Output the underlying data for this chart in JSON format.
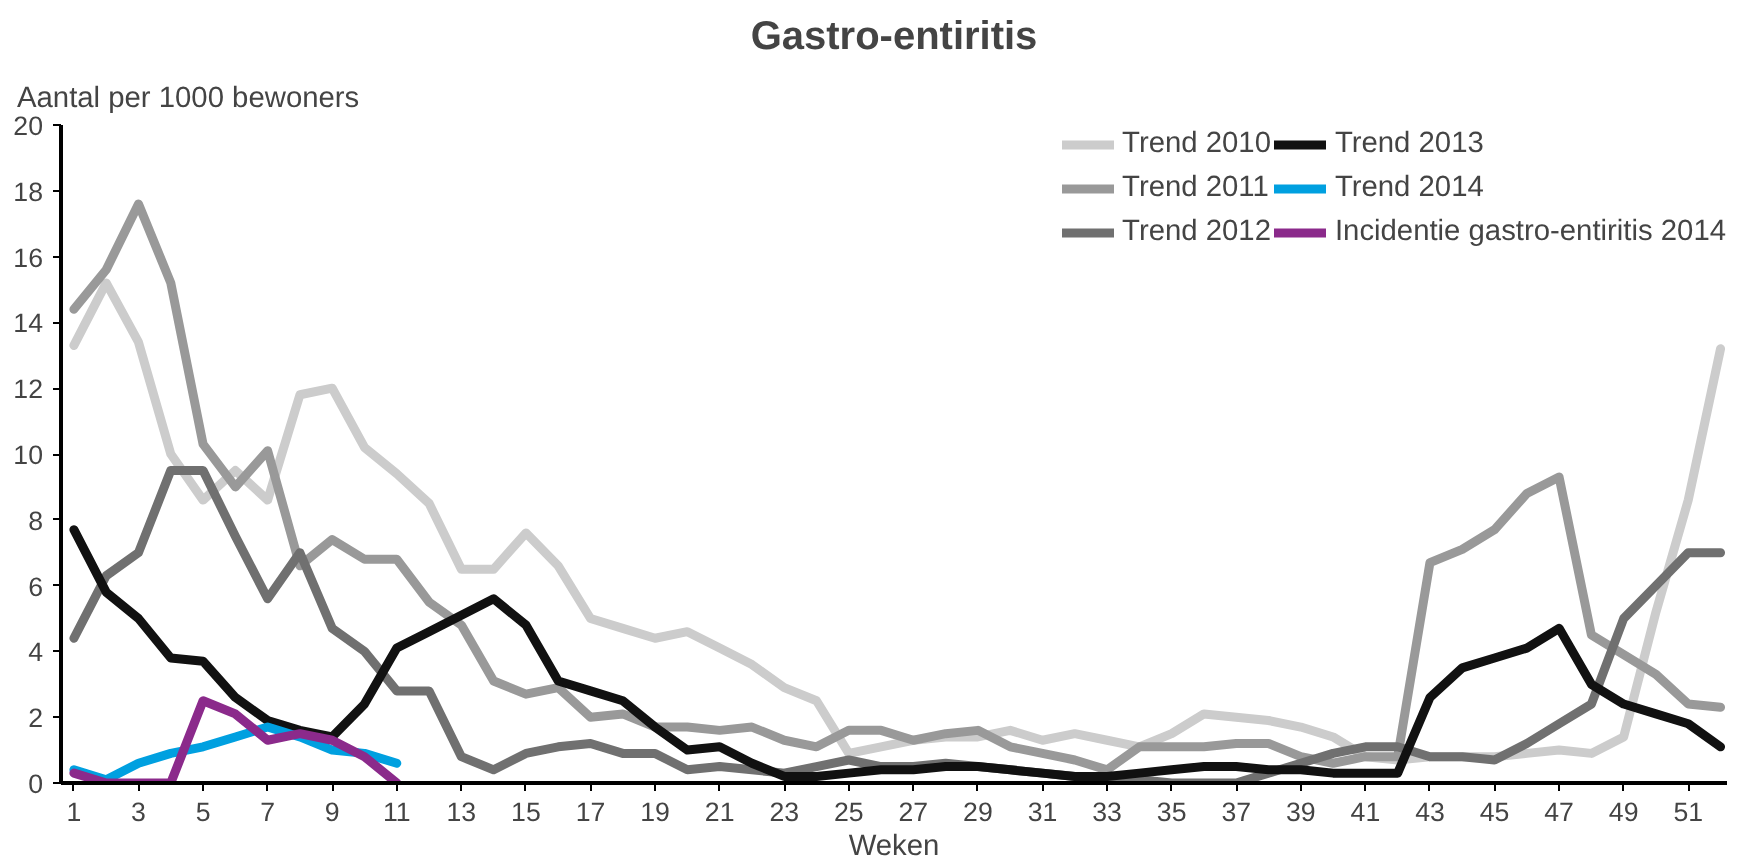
{
  "chart_data": {
    "type": "line",
    "title": "Gastro-entiritis",
    "xlabel": "Weken",
    "ylabel": "Aantal per 1000 bewoners",
    "x": [
      1,
      2,
      3,
      4,
      5,
      6,
      7,
      8,
      9,
      10,
      11,
      12,
      13,
      14,
      15,
      16,
      17,
      18,
      19,
      20,
      21,
      22,
      23,
      24,
      25,
      26,
      27,
      28,
      29,
      30,
      31,
      32,
      33,
      34,
      35,
      36,
      37,
      38,
      39,
      40,
      41,
      42,
      43,
      44,
      45,
      46,
      47,
      48,
      49,
      50,
      51,
      52
    ],
    "xlim": [
      0.6,
      52.2
    ],
    "xticks": [
      1,
      3,
      5,
      7,
      9,
      11,
      13,
      15,
      17,
      19,
      21,
      23,
      25,
      27,
      29,
      31,
      33,
      35,
      37,
      39,
      41,
      43,
      45,
      47,
      49,
      51
    ],
    "ylim": [
      0,
      20
    ],
    "yticks": [
      0,
      2,
      4,
      6,
      8,
      10,
      12,
      14,
      16,
      18,
      20
    ],
    "grid": false,
    "legend": "top right",
    "line_style": "solid",
    "series": [
      {
        "name": "Trend 2010",
        "color": "#cccccc",
        "values": [
          13.3,
          15.2,
          13.4,
          10,
          8.6,
          9.5,
          8.6,
          11.8,
          12,
          10.2,
          9.4,
          8.5,
          6.5,
          6.5,
          7.6,
          6.6,
          5,
          4.7,
          4.4,
          4.6,
          4.1,
          3.6,
          2.9,
          2.5,
          0.9,
          1.1,
          1.3,
          1.4,
          1.4,
          1.6,
          1.3,
          1.5,
          1.3,
          1.1,
          1.5,
          2.1,
          2,
          1.9,
          1.7,
          1.4,
          0.8,
          0.7,
          0.8,
          0.8,
          0.8,
          0.9,
          1,
          0.9,
          1.4,
          5.2,
          8.6,
          13.2
        ]
      },
      {
        "name": "Trend 2011",
        "color": "#999999",
        "values": [
          14.4,
          15.6,
          17.6,
          15.2,
          10.3,
          9,
          10.1,
          6.6,
          7.4,
          6.8,
          6.8,
          5.5,
          4.8,
          3.1,
          2.7,
          2.9,
          2,
          2.1,
          1.7,
          1.7,
          1.6,
          1.7,
          1.3,
          1.1,
          1.6,
          1.6,
          1.3,
          1.5,
          1.6,
          1.1,
          0.9,
          0.7,
          0.4,
          1.1,
          1.1,
          1.1,
          1.2,
          1.2,
          0.8,
          0.6,
          0.8,
          0.8,
          6.7,
          7.1,
          7.7,
          8.8,
          9.3,
          4.5,
          3.9,
          3.3,
          2.4,
          2.3
        ]
      },
      {
        "name": "Trend 2012",
        "color": "#707070",
        "values": [
          4.4,
          6.3,
          7,
          9.5,
          9.5,
          7.5,
          5.6,
          7,
          4.7,
          4,
          2.8,
          2.8,
          0.8,
          0.4,
          0.9,
          1.1,
          1.2,
          0.9,
          0.9,
          0.4,
          0.5,
          0.4,
          0.3,
          0.5,
          0.7,
          0.5,
          0.5,
          0.6,
          0.5,
          0.4,
          0.3,
          0.2,
          0.1,
          0.1,
          0,
          0,
          0,
          0.3,
          0.6,
          0.9,
          1.1,
          1.1,
          0.8,
          0.8,
          0.7,
          1.2,
          1.8,
          2.4,
          5,
          6,
          7,
          7
        ]
      },
      {
        "name": "Trend 2013",
        "color": "#111111",
        "values": [
          7.7,
          5.8,
          5,
          3.8,
          3.7,
          2.6,
          1.9,
          1.6,
          1.4,
          2.4,
          4.1,
          4.6,
          5.1,
          5.6,
          4.8,
          3.1,
          2.8,
          2.5,
          1.7,
          1,
          1.1,
          0.6,
          0.2,
          0.2,
          0.3,
          0.4,
          0.4,
          0.5,
          0.5,
          0.4,
          0.3,
          0.2,
          0.2,
          0.3,
          0.4,
          0.5,
          0.5,
          0.4,
          0.4,
          0.3,
          0.3,
          0.3,
          2.6,
          3.5,
          3.8,
          4.1,
          4.7,
          3,
          2.4,
          2.1,
          1.8,
          1.1
        ]
      },
      {
        "name": "Trend 2014",
        "color": "#00a0e0",
        "values": [
          0.4,
          0.1,
          0.6,
          0.9,
          1.1,
          1.4,
          1.7,
          1.4,
          1,
          0.9,
          0.6,
          null,
          null,
          null,
          null,
          null,
          null,
          null,
          null,
          null,
          null,
          null,
          null,
          null,
          null,
          null,
          null,
          null,
          null,
          null,
          null,
          null,
          null,
          null,
          null,
          null,
          null,
          null,
          null,
          null,
          null,
          null,
          null,
          null,
          null,
          null,
          null,
          null,
          null,
          null,
          null,
          null
        ]
      },
      {
        "name": "Incidentie gastro-entiritis 2014",
        "color": "#8b2a8b",
        "values": [
          0.3,
          0,
          0,
          0,
          2.5,
          2.1,
          1.3,
          1.5,
          1.3,
          0.8,
          0,
          null,
          null,
          null,
          null,
          null,
          null,
          null,
          null,
          null,
          null,
          null,
          null,
          null,
          null,
          null,
          null,
          null,
          null,
          null,
          null,
          null,
          null,
          null,
          null,
          null,
          null,
          null,
          null,
          null,
          null,
          null,
          null,
          null,
          null,
          null,
          null,
          null,
          null,
          null,
          null,
          null
        ]
      }
    ]
  }
}
